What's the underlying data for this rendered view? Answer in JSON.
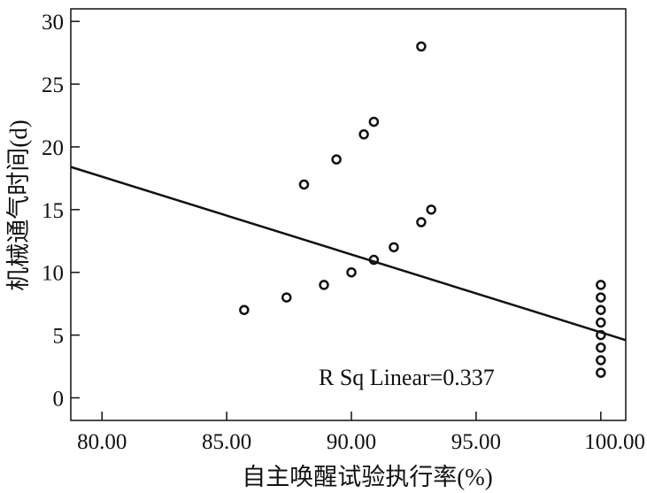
{
  "chart_data": {
    "type": "scatter",
    "title": "",
    "xlabel": "自主唤醒试验执行率(%)",
    "ylabel": "机械通气时间(d)",
    "xlim": [
      78.75,
      101.0
    ],
    "ylim": [
      -1.8,
      31.0
    ],
    "xticks": [
      80,
      85,
      90,
      95,
      100
    ],
    "xtick_labels": [
      "80.00",
      "85.00",
      "90.00",
      "95.00",
      "100.00"
    ],
    "yticks": [
      0,
      5,
      10,
      15,
      20,
      25,
      30
    ],
    "ytick_labels": [
      "0",
      "5",
      "10",
      "15",
      "20",
      "25",
      "30"
    ],
    "grid": false,
    "series": [
      {
        "points": [
          {
            "x": 85.7,
            "y": 7
          },
          {
            "x": 87.4,
            "y": 8
          },
          {
            "x": 88.1,
            "y": 17
          },
          {
            "x": 88.9,
            "y": 9
          },
          {
            "x": 89.4,
            "y": 19
          },
          {
            "x": 90.0,
            "y": 10
          },
          {
            "x": 90.5,
            "y": 21
          },
          {
            "x": 90.9,
            "y": 11
          },
          {
            "x": 90.9,
            "y": 22
          },
          {
            "x": 91.7,
            "y": 12
          },
          {
            "x": 92.8,
            "y": 14
          },
          {
            "x": 92.8,
            "y": 28
          },
          {
            "x": 93.2,
            "y": 15
          },
          {
            "x": 100.0,
            "y": 2
          },
          {
            "x": 100.0,
            "y": 3
          },
          {
            "x": 100.0,
            "y": 4
          },
          {
            "x": 100.0,
            "y": 5
          },
          {
            "x": 100.0,
            "y": 6
          },
          {
            "x": 100.0,
            "y": 7
          },
          {
            "x": 100.0,
            "y": 8
          },
          {
            "x": 100.0,
            "y": 9
          }
        ]
      }
    ],
    "fit_line": {
      "x": [
        78.75,
        101.0
      ],
      "y": [
        18.4,
        4.6
      ]
    },
    "annotation": "R Sq Linear=0.337",
    "colors": {
      "axis": "#111111",
      "marker": "#111111",
      "fit": "#111111",
      "background": "#ffffff"
    }
  }
}
